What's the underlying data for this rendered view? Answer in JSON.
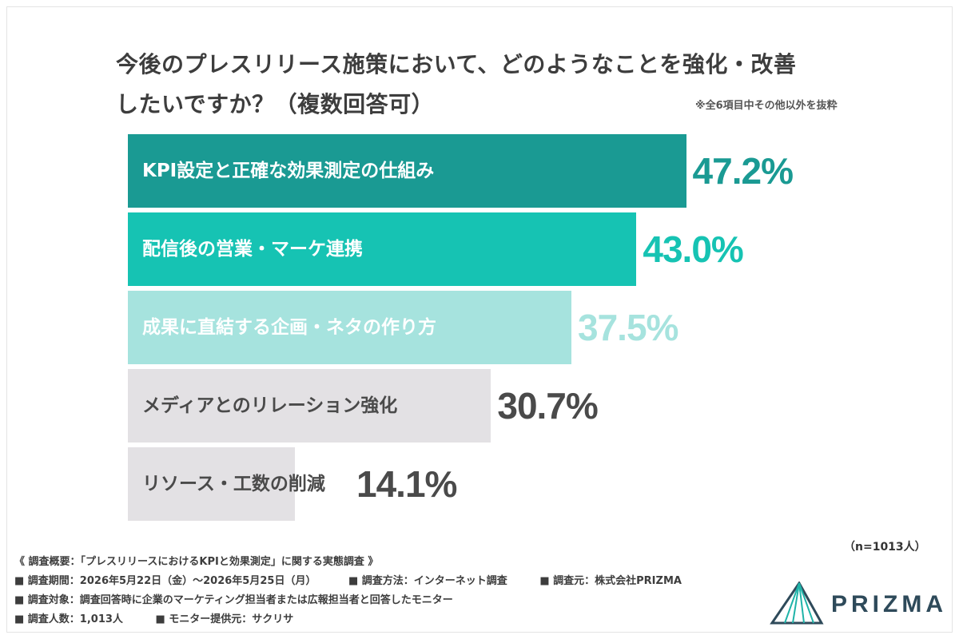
{
  "title_line1": "今後のプレスリリース施策において、どのようなことを強化・改善",
  "title_line2": "したいですか？（複数回答可）",
  "note": "※全6項目中その他以外を抜粋",
  "sample_size": "（n=1013人）",
  "chart_data": {
    "type": "bar",
    "orientation": "horizontal",
    "title": "今後のプレスリリース施策において、どのようなことを強化・改善したいですか？（複数回答可）",
    "categories": [
      "KPI設定と正確な効果測定の仕組み",
      "配信後の営業・マーケ連携",
      "成果に直結する企画・ネタの作り方",
      "メディアとのリレーション強化",
      "リソース・工数の削減"
    ],
    "values": [
      47.2,
      43.0,
      37.5,
      30.7,
      14.1
    ],
    "value_labels": [
      "47.2%",
      "43.0%",
      "37.5%",
      "30.7%",
      "14.1%"
    ],
    "bar_colors": [
      "#1a9a93",
      "#16c3b3",
      "#a6e3de",
      "#e3e1e4",
      "#e3e1e4"
    ],
    "label_colors": [
      "#ffffff",
      "#ffffff",
      "#ffffff",
      "#4a4a4a",
      "#4a4a4a"
    ],
    "value_colors": [
      "#1a9a93",
      "#16c3b3",
      "#a6e3de",
      "#4a4a4a",
      "#4a4a4a"
    ],
    "xlim": [
      0,
      100
    ],
    "grid": false,
    "legend": "none"
  },
  "footer": {
    "summary": "《 調査概要：「プレスリリースにおけるKPIと効果測定」に関する実態調査 》",
    "period": "■ 調査期間：2026年5月22日（金）〜2026年5月25日（月）",
    "method": "■ 調査方法：インターネット調査",
    "source": "■ 調査元：株式会社PRIZMA",
    "target": "■ 調査対象：調査回答時に企業のマーケティング担当者または広報担当者と回答したモニター",
    "count": "■ 調査人数：1,013人",
    "provider": "■ モニター提供元：サクリサ"
  },
  "logo": {
    "text": "PRIZMA",
    "icon": "prism-logo-icon",
    "color": "#2e4a5a",
    "accent": "#1fb3a8"
  }
}
